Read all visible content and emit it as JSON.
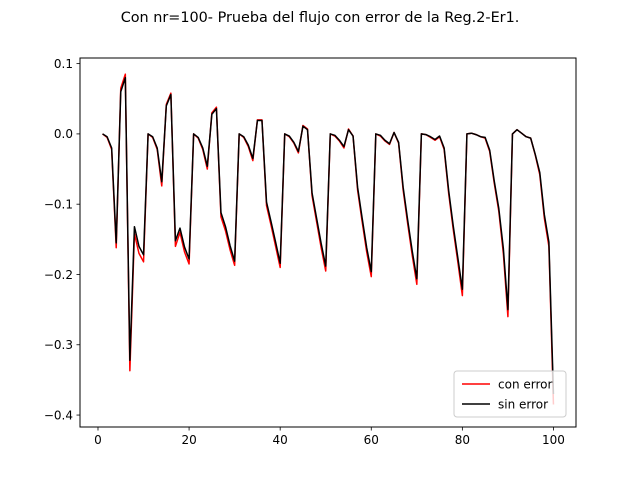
{
  "chart_data": {
    "type": "line",
    "title": "Con nr=100- Prueba del flujo con error de la Reg.2-Er1.",
    "xlabel": "",
    "ylabel": "",
    "xlim": [
      -3.95,
      104.95
    ],
    "ylim": [
      -0.417,
      0.108
    ],
    "xticks": [
      0,
      20,
      40,
      60,
      80,
      100
    ],
    "yticks": [
      -0.4,
      -0.3,
      -0.2,
      -0.1,
      0.0,
      0.1
    ],
    "ytick_labels": [
      "−0.4",
      "−0.3",
      "−0.2",
      "−0.1",
      "0.0",
      "0.1"
    ],
    "grid": false,
    "legend_position": "lower-right",
    "x": [
      1,
      2,
      3,
      4,
      5,
      6,
      7,
      8,
      9,
      10,
      11,
      12,
      13,
      14,
      15,
      16,
      17,
      18,
      19,
      20,
      21,
      22,
      23,
      24,
      25,
      26,
      27,
      28,
      29,
      30,
      31,
      32,
      33,
      34,
      35,
      36,
      37,
      38,
      39,
      40,
      41,
      42,
      43,
      44,
      45,
      46,
      47,
      48,
      49,
      50,
      51,
      52,
      53,
      54,
      55,
      56,
      57,
      58,
      59,
      60,
      61,
      62,
      63,
      64,
      65,
      66,
      67,
      68,
      69,
      70,
      71,
      72,
      73,
      74,
      75,
      76,
      77,
      78,
      79,
      80,
      81,
      82,
      83,
      84,
      85,
      86,
      87,
      88,
      89,
      90,
      91,
      92,
      93,
      94,
      95,
      96,
      97,
      98,
      99,
      100
    ],
    "series": [
      {
        "name": "con error",
        "color": "#ff0000",
        "values": [
          0.0,
          -0.005,
          -0.022,
          -0.162,
          0.065,
          0.085,
          -0.337,
          -0.142,
          -0.17,
          -0.182,
          0.0,
          -0.005,
          -0.022,
          -0.074,
          0.042,
          0.058,
          -0.16,
          -0.14,
          -0.168,
          -0.185,
          0.0,
          -0.006,
          -0.022,
          -0.05,
          0.03,
          0.038,
          -0.118,
          -0.138,
          -0.165,
          -0.187,
          0.0,
          -0.005,
          -0.018,
          -0.038,
          0.02,
          0.02,
          -0.102,
          -0.13,
          -0.16,
          -0.19,
          0.0,
          -0.004,
          -0.013,
          -0.027,
          0.012,
          0.007,
          -0.088,
          -0.125,
          -0.162,
          -0.195,
          0.0,
          -0.003,
          -0.01,
          -0.02,
          0.007,
          -0.003,
          -0.08,
          -0.125,
          -0.168,
          -0.203,
          0.0,
          -0.003,
          -0.01,
          -0.015,
          0.002,
          -0.013,
          -0.08,
          -0.128,
          -0.173,
          -0.214,
          0.0,
          -0.001,
          -0.005,
          -0.009,
          -0.004,
          -0.022,
          -0.085,
          -0.136,
          -0.182,
          -0.23,
          0.0,
          0.001,
          -0.001,
          -0.004,
          -0.006,
          -0.025,
          -0.07,
          -0.11,
          -0.17,
          -0.26,
          0.0,
          0.006,
          0.001,
          -0.004,
          -0.006,
          -0.03,
          -0.058,
          -0.12,
          -0.16,
          -0.385
        ]
      },
      {
        "name": "sin error",
        "color": "#000000",
        "values": [
          0.0,
          -0.004,
          -0.02,
          -0.155,
          0.06,
          0.08,
          -0.322,
          -0.132,
          -0.16,
          -0.172,
          0.0,
          -0.004,
          -0.02,
          -0.068,
          0.04,
          0.056,
          -0.152,
          -0.134,
          -0.161,
          -0.178,
          0.0,
          -0.005,
          -0.02,
          -0.046,
          0.028,
          0.036,
          -0.112,
          -0.132,
          -0.159,
          -0.181,
          0.0,
          -0.004,
          -0.016,
          -0.035,
          0.019,
          0.019,
          -0.097,
          -0.125,
          -0.154,
          -0.184,
          0.0,
          -0.003,
          -0.012,
          -0.025,
          0.011,
          0.006,
          -0.084,
          -0.12,
          -0.156,
          -0.188,
          0.0,
          -0.002,
          -0.009,
          -0.018,
          0.006,
          -0.003,
          -0.076,
          -0.12,
          -0.162,
          -0.196,
          0.0,
          -0.002,
          -0.009,
          -0.014,
          0.002,
          -0.012,
          -0.076,
          -0.123,
          -0.167,
          -0.206,
          0.0,
          -0.001,
          -0.004,
          -0.008,
          -0.003,
          -0.02,
          -0.081,
          -0.131,
          -0.176,
          -0.221,
          0.0,
          0.001,
          -0.001,
          -0.004,
          -0.005,
          -0.023,
          -0.067,
          -0.106,
          -0.163,
          -0.25,
          0.0,
          0.006,
          0.001,
          -0.004,
          -0.006,
          -0.029,
          -0.055,
          -0.115,
          -0.154,
          -0.37
        ]
      }
    ]
  }
}
